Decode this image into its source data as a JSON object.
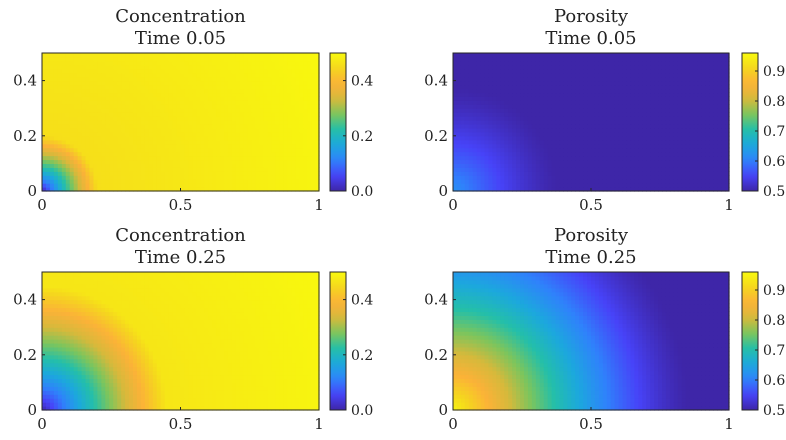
{
  "colormap": [
    "#3e26a8",
    "#4743f8",
    "#2f82fb",
    "#1ca8dd",
    "#24bfa9",
    "#7cc55d",
    "#d6b93b",
    "#fbb238",
    "#f5d61e",
    "#f8fa0d"
  ],
  "chart_data": [
    {
      "type": "heatmap",
      "title": [
        "Concentration",
        "Time 0.05"
      ],
      "xlabel": "",
      "ylabel": "",
      "xlim": [
        0,
        1
      ],
      "ylim": [
        0,
        0.5
      ],
      "x_ticks": [
        "0",
        "0.5",
        "1"
      ],
      "y_ticks": [
        "0",
        "0.2",
        "0.4"
      ],
      "colorbar": {
        "range": [
          0,
          0.5
        ],
        "ticks": [
          "0.0",
          "0.2",
          "0.4"
        ]
      },
      "field": {
        "kind": "concentration",
        "front_radius": 0.2,
        "min": 0.0,
        "max": 0.5
      }
    },
    {
      "type": "heatmap",
      "title": [
        "Porosity",
        "Time 0.05"
      ],
      "xlabel": "",
      "ylabel": "",
      "xlim": [
        0,
        1
      ],
      "ylim": [
        0,
        0.5
      ],
      "x_ticks": [
        "0",
        "0.5",
        "1"
      ],
      "y_ticks": [
        "0",
        "0.2",
        "0.4"
      ],
      "colorbar": {
        "range": [
          0.5,
          0.96
        ],
        "ticks": [
          "0.5",
          "0.6",
          "0.7",
          "0.8",
          "0.9"
        ]
      },
      "field": {
        "kind": "porosity",
        "front_radius": 0.2,
        "min": 0.5,
        "max": 0.62
      }
    },
    {
      "type": "heatmap",
      "title": [
        "Concentration",
        "Time 0.25"
      ],
      "xlabel": "",
      "ylabel": "",
      "xlim": [
        0,
        1
      ],
      "ylim": [
        0,
        0.5
      ],
      "x_ticks": [
        "0",
        "0.5",
        "1"
      ],
      "y_ticks": [
        "0",
        "0.2",
        "0.4"
      ],
      "colorbar": {
        "range": [
          0,
          0.5
        ],
        "ticks": [
          "0.0",
          "0.2",
          "0.4"
        ]
      },
      "field": {
        "kind": "concentration",
        "front_radius": 0.45,
        "min": 0.0,
        "max": 0.5
      }
    },
    {
      "type": "heatmap",
      "title": [
        "Porosity",
        "Time 0.25"
      ],
      "xlabel": "",
      "ylabel": "",
      "xlim": [
        0,
        1
      ],
      "ylim": [
        0,
        0.5
      ],
      "x_ticks": [
        "0",
        "0.5",
        "1"
      ],
      "y_ticks": [
        "0",
        "0.2",
        "0.4"
      ],
      "colorbar": {
        "range": [
          0.5,
          0.96
        ],
        "ticks": [
          "0.5",
          "0.6",
          "0.7",
          "0.8",
          "0.9"
        ]
      },
      "field": {
        "kind": "porosity",
        "front_radius": 0.45,
        "min": 0.5,
        "max": 0.95
      }
    }
  ]
}
